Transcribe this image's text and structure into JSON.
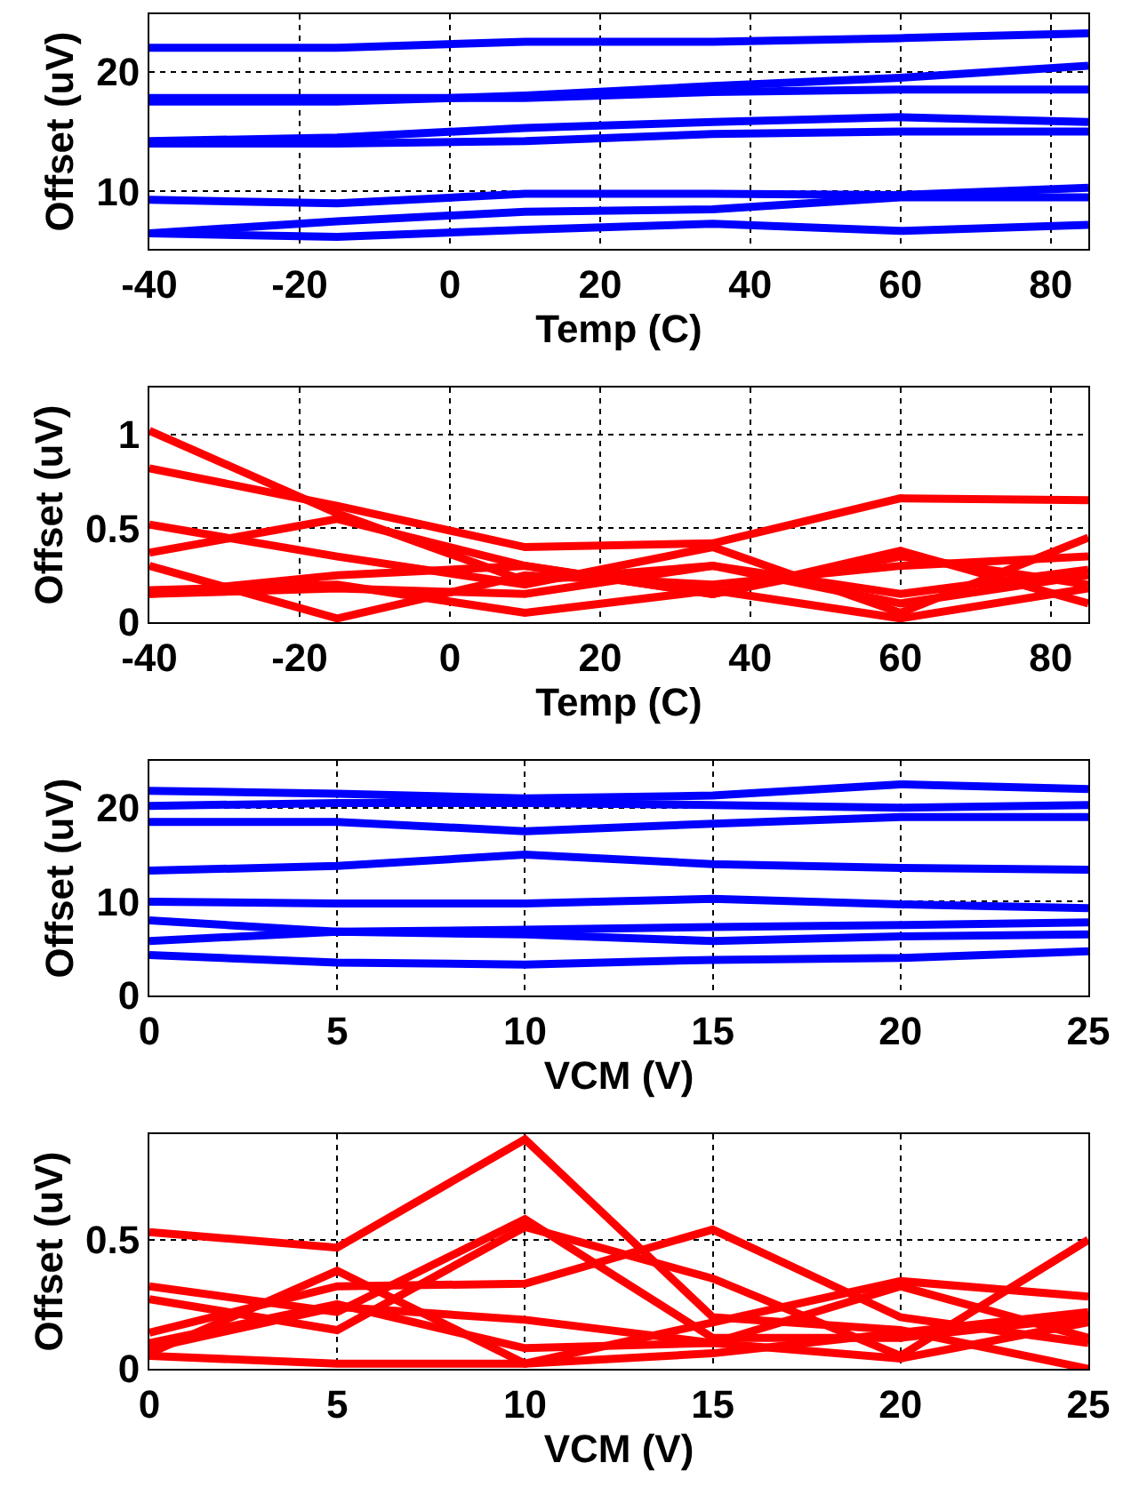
{
  "chart_data": [
    {
      "type": "line",
      "xlabel": "Temp (C)",
      "ylabel": "Offset (uV)",
      "x": [
        -40,
        -15,
        10,
        35,
        60,
        85
      ],
      "xlim": [
        -40,
        85
      ],
      "xticks": [
        -40,
        -20,
        0,
        20,
        40,
        60,
        80
      ],
      "ylim": [
        5.2,
        24.8
      ],
      "yticks": [
        10,
        20
      ],
      "grid": true,
      "series": [
        {
          "color": "#0000ff",
          "values": [
            22,
            22,
            22.5,
            22.5,
            22.8,
            23.2
          ]
        },
        {
          "color": "#0000ff",
          "values": [
            17.5,
            17.5,
            18,
            18.8,
            19.5,
            20.5
          ]
        },
        {
          "color": "#0000ff",
          "values": [
            17.8,
            17.8,
            17.8,
            18.3,
            18.5,
            18.5
          ]
        },
        {
          "color": "#0000ff",
          "values": [
            14.2,
            14.5,
            15.3,
            15.8,
            16.2,
            15.8
          ]
        },
        {
          "color": "#0000ff",
          "values": [
            14,
            14,
            14.2,
            14.8,
            15,
            15
          ]
        },
        {
          "color": "#0000ff",
          "values": [
            9.3,
            9,
            9.8,
            9.8,
            9.7,
            10.3
          ]
        },
        {
          "color": "#0000ff",
          "values": [
            6.5,
            7.5,
            8.3,
            8.5,
            9.5,
            9.5
          ]
        },
        {
          "color": "#0000ff",
          "values": [
            6.5,
            6.2,
            6.8,
            7.3,
            6.7,
            7.2
          ]
        }
      ]
    },
    {
      "type": "line",
      "xlabel": "Temp (C)",
      "ylabel": "Offset (uV)",
      "x": [
        -40,
        -15,
        10,
        35,
        60,
        85
      ],
      "xlim": [
        -40,
        85
      ],
      "xticks": [
        -40,
        -20,
        0,
        20,
        40,
        60,
        80
      ],
      "ylim": [
        0,
        1.25
      ],
      "yticks": [
        0,
        0.5,
        1
      ],
      "grid": true,
      "series": [
        {
          "color": "#ff0000",
          "values": [
            1.02,
            0.58,
            0.22,
            0.3,
            0.1,
            0.25
          ]
        },
        {
          "color": "#ff0000",
          "values": [
            0.82,
            0.62,
            0.4,
            0.42,
            0.66,
            0.65
          ]
        },
        {
          "color": "#ff0000",
          "values": [
            0.52,
            0.35,
            0.2,
            0.4,
            0.05,
            0.45
          ]
        },
        {
          "color": "#ff0000",
          "values": [
            0.37,
            0.55,
            0.3,
            0.15,
            0.35,
            0.2
          ]
        },
        {
          "color": "#ff0000",
          "values": [
            0.3,
            0.02,
            0.25,
            0.2,
            0.3,
            0.35
          ]
        },
        {
          "color": "#ff0000",
          "values": [
            0.15,
            0.25,
            0.3,
            0.15,
            0.38,
            0.1
          ]
        },
        {
          "color": "#ff0000",
          "values": [
            0.15,
            0.18,
            0.15,
            0.3,
            0.15,
            0.28
          ]
        },
        {
          "color": "#ff0000",
          "values": [
            0.17,
            0.2,
            0.05,
            0.17,
            0.02,
            0.18
          ]
        }
      ]
    },
    {
      "type": "line",
      "xlabel": "VCM (V)",
      "ylabel": "Offset (uV)",
      "x": [
        0,
        5,
        10,
        15,
        20,
        25
      ],
      "xlim": [
        0,
        25
      ],
      "xticks": [
        0,
        5,
        10,
        15,
        20,
        25
      ],
      "ylim": [
        0,
        25
      ],
      "yticks": [
        0,
        10,
        20
      ],
      "grid": true,
      "series": [
        {
          "color": "#0000ff",
          "values": [
            21.8,
            21.5,
            21,
            21.3,
            22.5,
            22
          ]
        },
        {
          "color": "#0000ff",
          "values": [
            20.2,
            20.5,
            20.5,
            20.3,
            20,
            20.3
          ]
        },
        {
          "color": "#0000ff",
          "values": [
            18.5,
            18.5,
            17.5,
            18.3,
            19,
            19
          ]
        },
        {
          "color": "#0000ff",
          "values": [
            13.3,
            13.8,
            15,
            14,
            13.6,
            13.4
          ]
        },
        {
          "color": "#0000ff",
          "values": [
            10,
            9.8,
            9.8,
            10.3,
            9.7,
            9.3
          ]
        },
        {
          "color": "#0000ff",
          "values": [
            8,
            6.8,
            7,
            7.3,
            7.5,
            7.8
          ]
        },
        {
          "color": "#0000ff",
          "values": [
            5.8,
            6.8,
            6.5,
            5.8,
            6.3,
            6.5
          ]
        },
        {
          "color": "#0000ff",
          "values": [
            4.3,
            3.5,
            3.3,
            3.8,
            4,
            4.7
          ]
        }
      ]
    },
    {
      "type": "line",
      "xlabel": "VCM (V)",
      "ylabel": "Offset (uV)",
      "x": [
        0,
        5,
        10,
        15,
        20,
        25
      ],
      "xlim": [
        0,
        25
      ],
      "xticks": [
        0,
        5,
        10,
        15,
        20,
        25
      ],
      "ylim": [
        0,
        0.91
      ],
      "yticks": [
        0,
        0.5
      ],
      "grid": true,
      "series": [
        {
          "color": "#ff0000",
          "values": [
            0.53,
            0.47,
            0.89,
            0.2,
            0.15,
            0
          ]
        },
        {
          "color": "#ff0000",
          "values": [
            0.32,
            0.22,
            0.58,
            0.12,
            0.12,
            0.2
          ]
        },
        {
          "color": "#ff0000",
          "values": [
            0.27,
            0.15,
            0.55,
            0.35,
            0.05,
            0.5
          ]
        },
        {
          "color": "#ff0000",
          "values": [
            0.14,
            0.32,
            0.33,
            0.54,
            0.2,
            0.1
          ]
        },
        {
          "color": "#ff0000",
          "values": [
            0.06,
            0.38,
            0.02,
            0.18,
            0.34,
            0.28
          ]
        },
        {
          "color": "#ff0000",
          "values": [
            0.08,
            0.24,
            0.19,
            0.1,
            0.32,
            0.12
          ]
        },
        {
          "color": "#ff0000",
          "values": [
            0.05,
            0.02,
            0.02,
            0.06,
            0.14,
            0.22
          ]
        },
        {
          "color": "#ff0000",
          "values": [
            0.1,
            0.25,
            0.08,
            0.1,
            0.04,
            0.18
          ]
        }
      ]
    }
  ]
}
